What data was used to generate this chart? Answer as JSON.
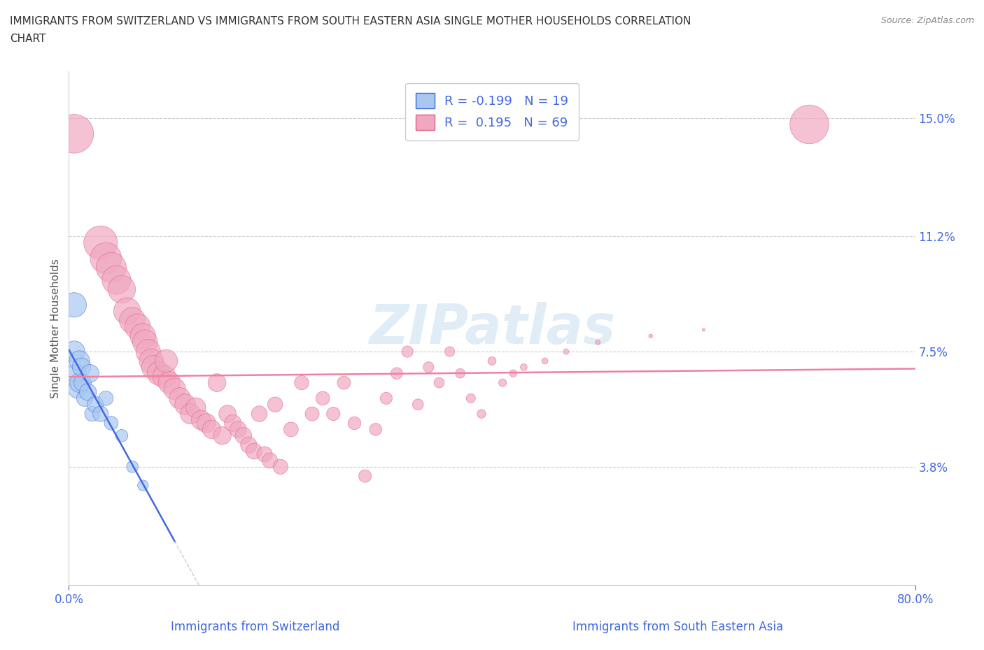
{
  "title_line1": "IMMIGRANTS FROM SWITZERLAND VS IMMIGRANTS FROM SOUTH EASTERN ASIA SINGLE MOTHER HOUSEHOLDS CORRELATION",
  "title_line2": "CHART",
  "source": "Source: ZipAtlas.com",
  "xlabel_left": "Immigrants from Switzerland",
  "xlabel_right": "Immigrants from South Eastern Asia",
  "ylabel": "Single Mother Households",
  "xlim": [
    0.0,
    0.8
  ],
  "ylim": [
    0.0,
    0.165
  ],
  "yticks": [
    0.038,
    0.075,
    0.112,
    0.15
  ],
  "ytick_labels": [
    "3.8%",
    "7.5%",
    "11.2%",
    "15.0%"
  ],
  "xtick_labels": [
    "0.0%",
    "80.0%"
  ],
  "color_swiss": "#a8c8f0",
  "color_sea": "#f0a8c0",
  "line_color_swiss": "#4169e1",
  "line_color_sea": "#f080a0",
  "watermark": "ZIPatlas",
  "swiss_points": [
    [
      0.005,
      0.09
    ],
    [
      0.005,
      0.075
    ],
    [
      0.007,
      0.068
    ],
    [
      0.008,
      0.063
    ],
    [
      0.01,
      0.072
    ],
    [
      0.01,
      0.065
    ],
    [
      0.012,
      0.07
    ],
    [
      0.013,
      0.065
    ],
    [
      0.015,
      0.06
    ],
    [
      0.018,
      0.062
    ],
    [
      0.02,
      0.068
    ],
    [
      0.022,
      0.055
    ],
    [
      0.025,
      0.058
    ],
    [
      0.03,
      0.055
    ],
    [
      0.035,
      0.06
    ],
    [
      0.04,
      0.052
    ],
    [
      0.05,
      0.048
    ],
    [
      0.06,
      0.038
    ],
    [
      0.07,
      0.032
    ]
  ],
  "swiss_sizes": [
    80,
    60,
    50,
    45,
    55,
    50,
    45,
    40,
    35,
    38,
    42,
    30,
    35,
    32,
    28,
    25,
    20,
    18,
    15
  ],
  "sea_points": [
    [
      0.005,
      0.145
    ],
    [
      0.03,
      0.11
    ],
    [
      0.035,
      0.105
    ],
    [
      0.04,
      0.102
    ],
    [
      0.045,
      0.098
    ],
    [
      0.05,
      0.095
    ],
    [
      0.055,
      0.088
    ],
    [
      0.06,
      0.085
    ],
    [
      0.065,
      0.083
    ],
    [
      0.07,
      0.08
    ],
    [
      0.072,
      0.078
    ],
    [
      0.075,
      0.075
    ],
    [
      0.078,
      0.072
    ],
    [
      0.08,
      0.07
    ],
    [
      0.085,
      0.068
    ],
    [
      0.09,
      0.067
    ],
    [
      0.092,
      0.072
    ],
    [
      0.095,
      0.065
    ],
    [
      0.1,
      0.063
    ],
    [
      0.105,
      0.06
    ],
    [
      0.11,
      0.058
    ],
    [
      0.115,
      0.055
    ],
    [
      0.12,
      0.057
    ],
    [
      0.125,
      0.053
    ],
    [
      0.13,
      0.052
    ],
    [
      0.135,
      0.05
    ],
    [
      0.14,
      0.065
    ],
    [
      0.145,
      0.048
    ],
    [
      0.15,
      0.055
    ],
    [
      0.155,
      0.052
    ],
    [
      0.16,
      0.05
    ],
    [
      0.165,
      0.048
    ],
    [
      0.17,
      0.045
    ],
    [
      0.175,
      0.043
    ],
    [
      0.18,
      0.055
    ],
    [
      0.185,
      0.042
    ],
    [
      0.19,
      0.04
    ],
    [
      0.195,
      0.058
    ],
    [
      0.2,
      0.038
    ],
    [
      0.21,
      0.05
    ],
    [
      0.22,
      0.065
    ],
    [
      0.23,
      0.055
    ],
    [
      0.24,
      0.06
    ],
    [
      0.25,
      0.055
    ],
    [
      0.26,
      0.065
    ],
    [
      0.27,
      0.052
    ],
    [
      0.28,
      0.035
    ],
    [
      0.29,
      0.05
    ],
    [
      0.3,
      0.06
    ],
    [
      0.31,
      0.068
    ],
    [
      0.32,
      0.075
    ],
    [
      0.33,
      0.058
    ],
    [
      0.34,
      0.07
    ],
    [
      0.35,
      0.065
    ],
    [
      0.36,
      0.075
    ],
    [
      0.37,
      0.068
    ],
    [
      0.38,
      0.06
    ],
    [
      0.39,
      0.055
    ],
    [
      0.4,
      0.072
    ],
    [
      0.41,
      0.065
    ],
    [
      0.42,
      0.068
    ],
    [
      0.43,
      0.07
    ],
    [
      0.45,
      0.072
    ],
    [
      0.47,
      0.075
    ],
    [
      0.5,
      0.078
    ],
    [
      0.55,
      0.08
    ],
    [
      0.6,
      0.082
    ],
    [
      0.7,
      0.148
    ]
  ],
  "sea_sizes": [
    200,
    150,
    130,
    120,
    110,
    100,
    95,
    90,
    88,
    85,
    82,
    80,
    78,
    75,
    72,
    70,
    68,
    65,
    63,
    60,
    58,
    55,
    52,
    50,
    48,
    45,
    43,
    42,
    40,
    38,
    37,
    36,
    35,
    34,
    33,
    32,
    31,
    30,
    29,
    28,
    27,
    26,
    25,
    24,
    23,
    22,
    21,
    20,
    19,
    18,
    17,
    16,
    15,
    14,
    13,
    12,
    11,
    10,
    9,
    8,
    7,
    6,
    5,
    4,
    3,
    2,
    1,
    200
  ]
}
